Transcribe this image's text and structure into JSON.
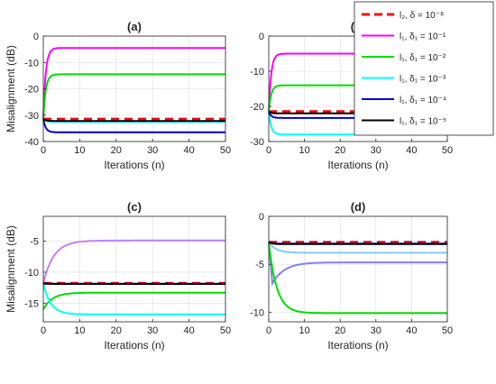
{
  "legend": {
    "entries": [
      {
        "label": "l₂, δ = 10⁻⁸",
        "color": "#ff0000",
        "dash": true
      },
      {
        "label": "l₁, δ₁ = 10⁻¹",
        "color": "#ff00ff",
        "dash": false
      },
      {
        "label": "l₁, δ₁ = 10⁻²",
        "color": "#00dd00",
        "dash": false
      },
      {
        "label": "l₁, δ₁ = 10⁻³",
        "color": "#00ffff",
        "dash": false
      },
      {
        "label": "l₁, δ₁ = 10⁻⁴",
        "color": "#0000cc",
        "dash": false
      },
      {
        "label": "l₁, δ₁ = 10⁻⁵",
        "color": "#000000",
        "dash": false
      }
    ],
    "placement": "top-right"
  },
  "chart_data": [
    {
      "type": "line",
      "title": "(a)",
      "xlabel": "Iterations (n)",
      "ylabel": "Misalignment (dB)",
      "xlim": [
        0,
        50
      ],
      "ylim": [
        -40,
        0
      ],
      "xticks": [
        0,
        10,
        20,
        30,
        40,
        50
      ],
      "yticks": [
        -40,
        -30,
        -20,
        -10,
        0
      ],
      "grid": true,
      "series": [
        {
          "color": "#ff0000",
          "dash": true,
          "start": -31.5,
          "final": -31.5,
          "rate": 1
        },
        {
          "color": "#ff00ff",
          "dash": false,
          "start": -31.5,
          "final": -4.5,
          "rate": 1.5
        },
        {
          "color": "#00dd00",
          "dash": false,
          "start": -31.5,
          "final": -14.5,
          "rate": 1.5
        },
        {
          "color": "#00ffff",
          "dash": false,
          "start": -31.5,
          "final": -32.5,
          "rate": 1.5
        },
        {
          "color": "#0000cc",
          "dash": false,
          "start": -31.5,
          "final": -36.5,
          "rate": 1.5
        },
        {
          "color": "#000000",
          "dash": false,
          "start": -31.5,
          "final": -32.2,
          "rate": 1.5
        }
      ]
    },
    {
      "type": "line",
      "title": "(b)",
      "xlabel": "Iterations (n)",
      "ylabel": "",
      "xlim": [
        0,
        50
      ],
      "ylim": [
        -30,
        0
      ],
      "xticks": [
        0,
        10,
        20,
        30,
        40,
        50
      ],
      "yticks": [
        -30,
        -20,
        -10,
        0
      ],
      "grid": true,
      "series": [
        {
          "color": "#ff0000",
          "dash": true,
          "start": -21.5,
          "final": -21.5,
          "rate": 1
        },
        {
          "color": "#ff00ff",
          "dash": false,
          "start": -21.5,
          "final": -5,
          "rate": 1.5
        },
        {
          "color": "#00dd00",
          "dash": false,
          "start": -21.5,
          "final": -14,
          "rate": 1.5
        },
        {
          "color": "#00ffff",
          "dash": false,
          "start": -21.5,
          "final": -28,
          "rate": 1.5
        },
        {
          "color": "#0000cc",
          "dash": false,
          "start": -21.5,
          "final": -23.3,
          "rate": 1.5
        },
        {
          "color": "#000000",
          "dash": false,
          "start": -21.5,
          "final": -22,
          "rate": 1.5
        }
      ]
    },
    {
      "type": "line",
      "title": "(c)",
      "xlabel": "Iterations (n)",
      "ylabel": "Misalignment (dB)",
      "xlim": [
        0,
        50
      ],
      "ylim": [
        -18,
        -1
      ],
      "xticks": [
        0,
        10,
        20,
        30,
        40,
        50
      ],
      "yticks": [
        -15,
        -10,
        -5
      ],
      "grid": true,
      "series": [
        {
          "color": "#ff0000",
          "dash": true,
          "start": -11.8,
          "final": -11.8,
          "rate": 1
        },
        {
          "color": "#c080ff",
          "dash": false,
          "start": -11.8,
          "final": -4.9,
          "rate": 0.35
        },
        {
          "color": "#00dd00",
          "dash": false,
          "start": -16,
          "final": -13.3,
          "rate": 0.4
        },
        {
          "color": "#00ffff",
          "dash": false,
          "start": -11.8,
          "final": -16.8,
          "rate": 0.5
        },
        {
          "color": "#0000cc",
          "dash": false,
          "start": -11.8,
          "final": -11.85,
          "rate": 1
        },
        {
          "color": "#000000",
          "dash": false,
          "start": -11.8,
          "final": -11.9,
          "rate": 1
        }
      ]
    },
    {
      "type": "line",
      "title": "(d)",
      "xlabel": "Iterations (n)",
      "ylabel": "",
      "xlim": [
        0,
        50
      ],
      "ylim": [
        -11,
        0
      ],
      "xticks": [
        0,
        10,
        20,
        30,
        40,
        50
      ],
      "yticks": [
        -10,
        -5,
        0
      ],
      "grid": true,
      "series": [
        {
          "color": "#ff0000",
          "dash": true,
          "start": -2.7,
          "final": -2.7,
          "rate": 1
        },
        {
          "color": "#8080ff",
          "dash": false,
          "start": -2.7,
          "final": -4.8,
          "rate": 0.3,
          "dip": -7
        },
        {
          "color": "#00dd00",
          "dash": false,
          "start": -2.7,
          "final": -10.1,
          "rate": 0.45
        },
        {
          "color": "#80ccff",
          "dash": false,
          "start": -2.7,
          "final": -3.8,
          "rate": 0.5
        },
        {
          "color": "#0000cc",
          "dash": false,
          "start": -2.7,
          "final": -2.85,
          "rate": 1
        },
        {
          "color": "#000000",
          "dash": false,
          "start": -2.7,
          "final": -2.9,
          "rate": 1
        }
      ]
    }
  ]
}
